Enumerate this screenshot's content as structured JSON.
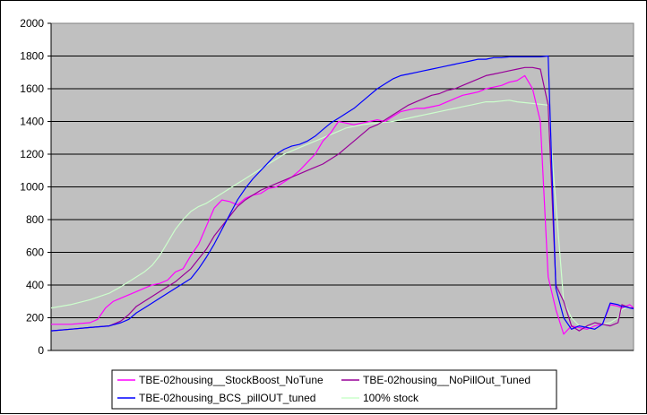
{
  "chart_data": {
    "type": "line",
    "title": "",
    "xlabel": "",
    "ylabel": "",
    "ylim": [
      0,
      2000
    ],
    "yticks": [
      0,
      200,
      400,
      600,
      800,
      1000,
      1200,
      1400,
      1600,
      1800,
      2000
    ],
    "xlim": [
      0,
      150
    ],
    "grid": "horizontal",
    "legend_position": "bottom",
    "plot_background": "#c0c0c0",
    "series": [
      {
        "name": "TBE-02housing__StockBoost_NoTune",
        "color": "#ff00ff",
        "x": [
          0,
          5,
          10,
          12,
          14,
          16,
          18,
          20,
          22,
          24,
          26,
          28,
          30,
          32,
          34,
          36,
          38,
          40,
          42,
          44,
          46,
          48,
          50,
          52,
          54,
          56,
          58,
          60,
          62,
          64,
          66,
          68,
          70,
          72,
          74,
          76,
          78,
          80,
          82,
          84,
          86,
          88,
          90,
          92,
          94,
          96,
          98,
          100,
          102,
          104,
          106,
          108,
          110,
          112,
          114,
          116,
          118,
          120,
          122,
          124,
          126,
          128,
          130,
          132,
          134,
          136,
          138,
          140,
          142,
          144,
          146,
          147,
          148,
          149,
          150
        ],
        "values": [
          160,
          160,
          170,
          190,
          260,
          300,
          320,
          340,
          360,
          380,
          400,
          410,
          430,
          480,
          500,
          580,
          650,
          760,
          870,
          920,
          910,
          890,
          930,
          950,
          960,
          990,
          1000,
          1030,
          1060,
          1100,
          1150,
          1200,
          1280,
          1330,
          1400,
          1390,
          1380,
          1390,
          1400,
          1410,
          1400,
          1430,
          1460,
          1470,
          1480,
          1480,
          1490,
          1500,
          1520,
          1540,
          1560,
          1570,
          1580,
          1600,
          1610,
          1620,
          1640,
          1650,
          1680,
          1600,
          1400,
          450,
          250,
          100,
          150,
          140,
          130,
          150,
          160,
          280,
          270,
          260,
          270,
          280,
          260
        ]
      },
      {
        "name": "TBE-02housing__NoPillOut_Tuned",
        "color": "#990099",
        "x": [
          0,
          5,
          10,
          15,
          18,
          20,
          22,
          24,
          26,
          28,
          30,
          32,
          34,
          36,
          38,
          40,
          42,
          44,
          46,
          48,
          50,
          52,
          54,
          56,
          58,
          60,
          62,
          64,
          66,
          68,
          70,
          72,
          74,
          76,
          78,
          80,
          82,
          84,
          86,
          88,
          90,
          92,
          94,
          96,
          98,
          100,
          102,
          104,
          106,
          108,
          110,
          112,
          114,
          116,
          118,
          120,
          122,
          124,
          126,
          128,
          130,
          132,
          134,
          136,
          138,
          140,
          142,
          144,
          146,
          147,
          148,
          149,
          150
        ],
        "values": [
          120,
          130,
          140,
          150,
          180,
          220,
          270,
          300,
          330,
          360,
          390,
          420,
          460,
          500,
          560,
          620,
          700,
          760,
          820,
          880,
          920,
          950,
          980,
          1000,
          1020,
          1040,
          1060,
          1080,
          1100,
          1120,
          1140,
          1170,
          1200,
          1240,
          1280,
          1320,
          1360,
          1380,
          1410,
          1440,
          1470,
          1500,
          1520,
          1540,
          1560,
          1570,
          1590,
          1600,
          1620,
          1640,
          1660,
          1680,
          1690,
          1700,
          1710,
          1720,
          1730,
          1730,
          1720,
          1500,
          400,
          300,
          150,
          120,
          150,
          170,
          160,
          150,
          170,
          280,
          270,
          260,
          260
        ]
      },
      {
        "name": "TBE-02housing_BCS_pillOUT_tuned",
        "color": "#0000ff",
        "x": [
          0,
          5,
          10,
          15,
          18,
          20,
          22,
          24,
          26,
          28,
          30,
          32,
          34,
          36,
          38,
          40,
          42,
          44,
          46,
          48,
          50,
          52,
          54,
          56,
          58,
          60,
          62,
          64,
          66,
          68,
          70,
          72,
          74,
          76,
          78,
          80,
          82,
          84,
          86,
          88,
          90,
          92,
          94,
          96,
          98,
          100,
          102,
          104,
          106,
          108,
          110,
          112,
          114,
          116,
          118,
          120,
          122,
          124,
          126,
          128,
          130,
          132,
          134,
          136,
          138,
          140,
          142,
          144,
          146,
          147,
          148,
          149,
          150
        ],
        "values": [
          120,
          130,
          140,
          150,
          170,
          190,
          230,
          260,
          290,
          320,
          350,
          380,
          410,
          440,
          500,
          570,
          650,
          740,
          830,
          920,
          990,
          1050,
          1100,
          1150,
          1200,
          1230,
          1250,
          1260,
          1280,
          1310,
          1350,
          1390,
          1420,
          1450,
          1480,
          1520,
          1560,
          1600,
          1630,
          1660,
          1680,
          1690,
          1700,
          1710,
          1720,
          1730,
          1740,
          1750,
          1760,
          1770,
          1780,
          1780,
          1790,
          1790,
          1795,
          1795,
          1795,
          1795,
          1795,
          1800,
          380,
          200,
          130,
          150,
          140,
          130,
          160,
          290,
          280,
          270,
          265,
          260,
          255
        ]
      },
      {
        "name": "100% stock",
        "color": "#ccffcc",
        "x": [
          0,
          5,
          10,
          15,
          18,
          20,
          22,
          24,
          26,
          28,
          30,
          32,
          34,
          36,
          38,
          40,
          42,
          44,
          46,
          48,
          50,
          52,
          54,
          56,
          58,
          60,
          62,
          64,
          66,
          68,
          70,
          72,
          74,
          76,
          78,
          80,
          82,
          84,
          86,
          88,
          90,
          92,
          94,
          96,
          98,
          100,
          102,
          104,
          106,
          108,
          110,
          112,
          114,
          116,
          118,
          120,
          122,
          124,
          126,
          128,
          130,
          132,
          134,
          136,
          138,
          140,
          142,
          144,
          146,
          147,
          148,
          149,
          150
        ],
        "values": [
          260,
          280,
          310,
          350,
          390,
          420,
          450,
          480,
          520,
          580,
          660,
          740,
          800,
          850,
          880,
          900,
          930,
          960,
          990,
          1020,
          1050,
          1080,
          1110,
          1140,
          1170,
          1200,
          1220,
          1240,
          1260,
          1280,
          1300,
          1320,
          1340,
          1360,
          1370,
          1380,
          1385,
          1390,
          1395,
          1400,
          1410,
          1420,
          1430,
          1440,
          1450,
          1460,
          1470,
          1480,
          1490,
          1500,
          1510,
          1520,
          1520,
          1525,
          1530,
          1520,
          1515,
          1510,
          1505,
          1500,
          900,
          300,
          200,
          150,
          140,
          150,
          160,
          170,
          200,
          250,
          260,
          260,
          260
        ]
      }
    ]
  }
}
